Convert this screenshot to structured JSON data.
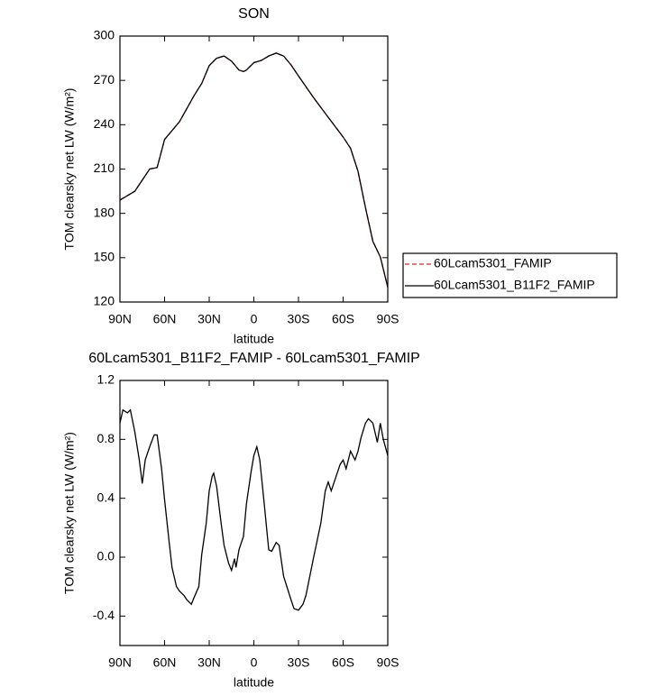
{
  "chart_data": [
    {
      "type": "line",
      "title": "SON",
      "xlabel": "latitude",
      "ylabel": "TOM clearsky net LW (W/m²)",
      "xlim": [
        90,
        -90
      ],
      "xticks": [
        {
          "value": 90,
          "label": "90N"
        },
        {
          "value": 60,
          "label": "60N"
        },
        {
          "value": 30,
          "label": "30N"
        },
        0,
        {
          "value": -30,
          "label": "30S"
        },
        {
          "value": -60,
          "label": "60S"
        },
        {
          "value": -90,
          "label": "90S"
        }
      ],
      "ylim": [
        120,
        300
      ],
      "yticks": [
        120,
        150,
        180,
        210,
        240,
        270,
        300
      ],
      "x": [
        90,
        80,
        70,
        65,
        60,
        50,
        40,
        35,
        30,
        25,
        20,
        15,
        10,
        7,
        5,
        0,
        -5,
        -10,
        -15,
        -20,
        -25,
        -30,
        -40,
        -50,
        -60,
        -65,
        -70,
        -75,
        -80,
        -85,
        -90
      ],
      "series": [
        {
          "name": "60Lcam5301_FAMIP",
          "color": "#e0201b",
          "dash": true,
          "values": [
            189,
            195,
            210,
            211,
            230,
            242,
            260,
            268,
            280,
            285,
            286.5,
            283,
            277,
            276,
            277,
            282,
            283.5,
            286.5,
            288.5,
            286.5,
            280.5,
            273,
            258.5,
            245,
            231.7,
            224,
            208.5,
            184,
            161,
            150.5,
            130
          ]
        },
        {
          "name": "60Lcam5301_B11F2_FAMIP",
          "color": "#000000",
          "dash": false,
          "values": [
            189,
            195,
            210,
            211,
            230,
            242,
            260,
            268,
            280,
            285,
            286.5,
            283,
            277,
            276,
            277,
            282,
            283.5,
            286.5,
            288.5,
            286.5,
            280.5,
            273,
            258.5,
            245,
            231.7,
            224,
            208.5,
            184,
            161,
            150.5,
            130
          ]
        }
      ]
    },
    {
      "type": "line",
      "title": "60Lcam5301_B11F2_FAMIP - 60Lcam5301_FAMIP",
      "xlabel": "latitude",
      "ylabel": "TOM clearsky net LW (W/m²)",
      "xlim": [
        90,
        -90
      ],
      "xticks": [
        {
          "value": 90,
          "label": "90N"
        },
        {
          "value": 60,
          "label": "60N"
        },
        {
          "value": 30,
          "label": "30N"
        },
        0,
        {
          "value": -30,
          "label": "30S"
        },
        {
          "value": -60,
          "label": "60S"
        },
        {
          "value": -90,
          "label": "90S"
        }
      ],
      "ylim": [
        -0.6,
        1.2
      ],
      "yticks": [
        -0.4,
        {
          "value": 0,
          "label": "0.0"
        },
        0.4,
        0.8,
        1.2
      ],
      "color": "#000000",
      "x": [
        90,
        88,
        85,
        83,
        80,
        77,
        75,
        73,
        70,
        67,
        65,
        62,
        60,
        57,
        55,
        52,
        50,
        47,
        45,
        42,
        40,
        37,
        35,
        32,
        30,
        28,
        27,
        25,
        22,
        20,
        17,
        15,
        13,
        12,
        10,
        7,
        5,
        2,
        0,
        -2,
        -4,
        -7,
        -10,
        -12,
        -15,
        -17,
        -20,
        -25,
        -27,
        -30,
        -33,
        -35,
        -40,
        -45,
        -48,
        -50,
        -52,
        -55,
        -58,
        -60,
        -62,
        -65,
        -68,
        -70,
        -72,
        -75,
        -77,
        -80,
        -83,
        -85,
        -87,
        -90
      ],
      "values": [
        0.91,
        1.0,
        0.98,
        1.0,
        0.85,
        0.66,
        0.5,
        0.66,
        0.75,
        0.83,
        0.83,
        0.6,
        0.39,
        0.11,
        -0.07,
        -0.2,
        -0.23,
        -0.26,
        -0.29,
        -0.32,
        -0.27,
        -0.2,
        0.02,
        0.23,
        0.45,
        0.55,
        0.57,
        0.48,
        0.23,
        0.08,
        -0.04,
        -0.09,
        -0.01,
        -0.07,
        0.05,
        0.14,
        0.36,
        0.57,
        0.69,
        0.75,
        0.66,
        0.36,
        0.05,
        0.04,
        0.1,
        0.08,
        -0.13,
        -0.29,
        -0.35,
        -0.36,
        -0.32,
        -0.26,
        -0.01,
        0.23,
        0.45,
        0.51,
        0.45,
        0.54,
        0.63,
        0.66,
        0.6,
        0.72,
        0.66,
        0.72,
        0.81,
        0.91,
        0.94,
        0.91,
        0.78,
        0.91,
        0.8,
        0.69
      ]
    }
  ]
}
